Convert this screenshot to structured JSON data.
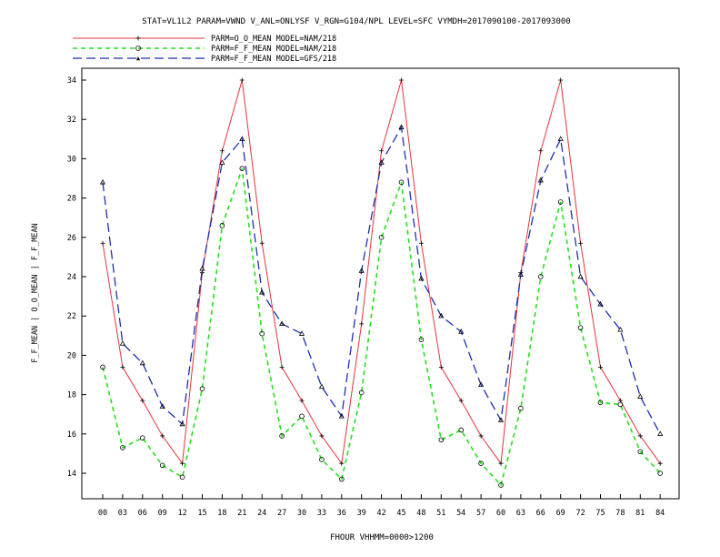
{
  "header": "STAT=VL1L2 PARAM=VWND V_ANL=ONLYSF V_RGN=G104/NPL LEVEL=SFC VYMDH=2017090100-2017093000",
  "legend": [
    {
      "label": "PARM=O_O_MEAN MODEL=NAM/218"
    },
    {
      "label": "PARM=F_F_MEAN MODEL=NAM/218"
    },
    {
      "label": "PARM=F_F_MEAN MODEL=GFS/218"
    }
  ],
  "colors": {
    "obs": "#e8313b",
    "nam": "#22e01a",
    "gfs": "#1c2fb2"
  },
  "chart_data": {
    "type": "line",
    "title": "STAT=VL1L2 PARAM=VWND V_ANL=ONLYSF V_RGN=G104/NPL LEVEL=SFC VYMDH=2017090100-2017093000",
    "xlabel": "FHOUR VHHMM=0000>1200",
    "ylabel": "F_F_MEAN | O_O_MEAN | F_F_MEAN",
    "categories": [
      "00",
      "03",
      "06",
      "09",
      "12",
      "15",
      "18",
      "21",
      "24",
      "27",
      "30",
      "33",
      "36",
      "39",
      "42",
      "45",
      "48",
      "51",
      "54",
      "57",
      "60",
      "63",
      "66",
      "69",
      "72",
      "75",
      "78",
      "81",
      "84"
    ],
    "ylim": [
      13,
      35
    ],
    "yticks": [
      14,
      16,
      18,
      20,
      22,
      24,
      26,
      28,
      30,
      32,
      34
    ],
    "grid": false,
    "legend_position": "top-left",
    "series": [
      {
        "name": "PARM=O_O_MEAN MODEL=NAM/218",
        "marker": "plus",
        "style": "solid",
        "values": [
          25.7,
          19.4,
          17.7,
          15.9,
          14.5,
          24.2,
          30.4,
          34.0,
          25.7,
          19.4,
          17.7,
          15.9,
          14.5,
          21.6,
          30.4,
          34.0,
          25.7,
          19.4,
          17.7,
          15.9,
          14.5,
          24.2,
          30.4,
          34.0,
          25.7,
          19.4,
          17.7,
          15.9,
          14.5
        ]
      },
      {
        "name": "PARM=F_F_MEAN MODEL=NAM/218",
        "marker": "circle",
        "style": "dashed",
        "values": [
          19.4,
          15.3,
          15.8,
          14.4,
          13.8,
          18.3,
          26.6,
          29.5,
          21.1,
          15.9,
          16.9,
          14.7,
          13.7,
          18.1,
          26.0,
          28.8,
          20.8,
          15.7,
          16.2,
          14.5,
          13.4,
          17.3,
          24.0,
          27.8,
          21.4,
          17.6,
          17.5,
          15.1,
          14.0
        ]
      },
      {
        "name": "PARM=F_F_MEAN MODEL=GFS/218",
        "marker": "triangle",
        "style": "longdash",
        "values": [
          28.8,
          20.6,
          19.6,
          17.4,
          16.5,
          24.4,
          29.8,
          31.0,
          23.2,
          21.6,
          21.1,
          18.4,
          16.9,
          24.3,
          29.8,
          31.6,
          23.9,
          22.0,
          21.2,
          18.5,
          16.7,
          24.1,
          28.9,
          31.0,
          24.0,
          22.6,
          21.3,
          17.9,
          16.0
        ]
      }
    ]
  }
}
